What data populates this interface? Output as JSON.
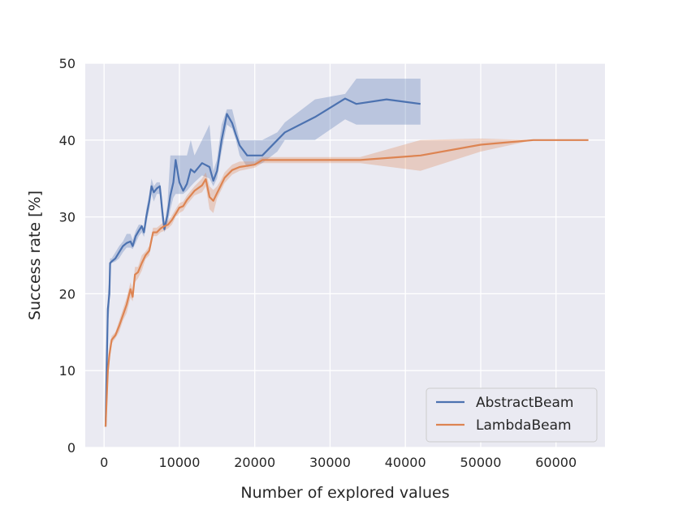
{
  "chart_data": {
    "type": "line",
    "xlabel": "Number of explored values",
    "ylabel": "Success rate [%]",
    "xlim": [
      -2500,
      66500
    ],
    "ylim": [
      0,
      50
    ],
    "x_ticks": [
      "0",
      "10000",
      "20000",
      "30000",
      "40000",
      "50000",
      "60000"
    ],
    "y_ticks": [
      "0",
      "10",
      "20",
      "30",
      "40",
      "50"
    ],
    "grid": true,
    "legend_position": "lower-right",
    "series": [
      {
        "name": "AbstractBeam",
        "color": "#4c72b0",
        "x": [
          200,
          500,
          700,
          800,
          1000,
          1500,
          2000,
          2500,
          3000,
          3500,
          3800,
          4200,
          4600,
          5000,
          5300,
          5600,
          6000,
          6300,
          6600,
          7000,
          7400,
          7700,
          8000,
          8400,
          8800,
          9200,
          9500,
          10000,
          10500,
          11000,
          11500,
          12000,
          13000,
          14000,
          14500,
          15000,
          15600,
          16300,
          17000,
          17500,
          18000,
          19000,
          21000,
          23000,
          24000,
          28000,
          32000,
          33500,
          37500,
          42000
        ],
        "y": [
          2.7,
          18,
          20,
          24,
          24.2,
          24.6,
          25.4,
          26.2,
          26.6,
          26.8,
          26.2,
          27.5,
          28.2,
          28.8,
          28,
          30,
          32,
          34,
          33.2,
          33.7,
          34,
          31,
          28.4,
          30.2,
          32.8,
          34.5,
          37.4,
          34.5,
          33.4,
          34.3,
          36.2,
          35.8,
          37,
          36.5,
          34.7,
          36,
          40,
          43.4,
          42.2,
          40.7,
          39.3,
          38,
          38,
          40,
          41,
          43,
          45.4,
          44.7,
          45.3,
          44.7
        ],
        "band_low": [
          2.7,
          16,
          18,
          23.5,
          24,
          24.2,
          24.6,
          25.4,
          26,
          26,
          25.8,
          26.6,
          27.5,
          28,
          27.4,
          29,
          31,
          33,
          32,
          33,
          33,
          29.5,
          28,
          29,
          31,
          32.5,
          33,
          33,
          33,
          33.4,
          34,
          34.5,
          35.4,
          35,
          34,
          35,
          38.5,
          42,
          41.5,
          40,
          38,
          36.5,
          37,
          38.5,
          40,
          40,
          42.7,
          42,
          42,
          42
        ],
        "band_high": [
          2.7,
          20,
          22,
          24.6,
          24.6,
          25.4,
          26.2,
          26.8,
          27.8,
          27.8,
          27,
          28.2,
          29,
          29,
          28.5,
          31,
          33,
          35,
          34,
          34.5,
          34.5,
          32.5,
          29,
          31.5,
          38,
          38,
          38,
          38,
          38,
          38,
          40,
          38,
          40,
          42,
          36,
          37.5,
          42,
          44,
          44,
          42,
          40,
          40,
          40,
          41,
          42.3,
          45.3,
          46,
          48,
          48,
          48
        ]
      },
      {
        "name": "LambdaBeam",
        "color": "#dd8452",
        "x": [
          200,
          500,
          700,
          1000,
          1500,
          2000,
          2500,
          3000,
          3500,
          3800,
          4100,
          4500,
          5000,
          5500,
          6000,
          6500,
          7000,
          7500,
          8000,
          8500,
          9000,
          9500,
          10000,
          10500,
          11000,
          11500,
          12000,
          13000,
          13500,
          14000,
          14500,
          15000,
          15500,
          16000,
          17000,
          18000,
          20000,
          21000,
          34000,
          42000,
          50000,
          57000,
          64300
        ],
        "y": [
          2.7,
          10,
          12,
          14,
          14.6,
          15.8,
          17.2,
          18.6,
          20.6,
          19.6,
          22.5,
          22.8,
          24,
          25,
          25.6,
          28,
          28,
          28.5,
          28.8,
          29,
          29.6,
          30.4,
          31.2,
          31.4,
          32.2,
          32.8,
          33.4,
          34.1,
          34.9,
          32.6,
          32.1,
          33.1,
          34.1,
          35.1,
          36.1,
          36.5,
          36.8,
          37.4,
          37.4,
          38,
          39.4,
          40,
          40
        ],
        "band_low": [
          2.7,
          8.5,
          11,
          13.5,
          14.2,
          15,
          16.5,
          17.5,
          19.5,
          19,
          21.5,
          22,
          23,
          24.5,
          25,
          27.5,
          27.5,
          28,
          28.2,
          28.5,
          29,
          30,
          30.5,
          30.8,
          31.6,
          32.2,
          32.8,
          33.2,
          34,
          31,
          30.5,
          32.4,
          33.4,
          34.4,
          35.5,
          36,
          36.4,
          37,
          37,
          36,
          38.5,
          40,
          40
        ],
        "band_high": [
          2.7,
          11.5,
          13,
          14.5,
          15,
          16.5,
          18,
          19.5,
          21.5,
          20.5,
          23.5,
          23.5,
          25,
          25.5,
          26.2,
          28.6,
          28.6,
          29,
          29.4,
          29.5,
          30.2,
          31,
          31.8,
          32,
          32.8,
          33.4,
          34,
          35,
          35.8,
          34,
          33.5,
          34,
          34.8,
          35.8,
          36.8,
          37.2,
          37.2,
          37.8,
          37.8,
          40,
          40.2,
          40,
          40
        ]
      }
    ]
  }
}
